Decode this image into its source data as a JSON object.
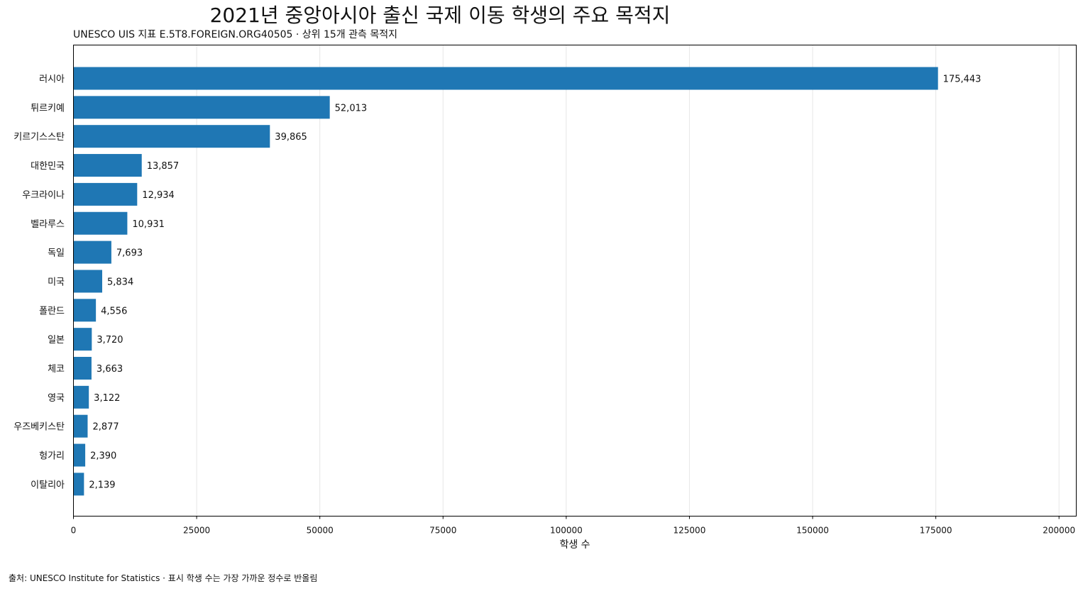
{
  "chart_data": {
    "type": "bar",
    "orientation": "horizontal",
    "title": "2021년 중앙아시아 출신 국제 이동 학생의 주요 목적지",
    "subtitle": "UNESCO UIS 지표 E.5T8.FOREIGN.ORG40505 · 상위 15개 관측 목적지",
    "xlabel": "학생 수",
    "ylabel": "",
    "xlim": [
      0,
      203500
    ],
    "xticks": [
      0,
      25000,
      50000,
      75000,
      100000,
      125000,
      150000,
      175000,
      200000
    ],
    "categories": [
      "러시아",
      "튀르키예",
      "키르기스스탄",
      "대한민국",
      "우크라이나",
      "벨라루스",
      "독일",
      "미국",
      "폴란드",
      "일본",
      "체코",
      "영국",
      "우즈베키스탄",
      "헝가리",
      "이탈리아"
    ],
    "values": [
      175443,
      52013,
      39865,
      13857,
      12934,
      10931,
      7693,
      5834,
      4556,
      3720,
      3663,
      3122,
      2877,
      2390,
      2139
    ],
    "value_labels": [
      "175,443",
      "52,013",
      "39,865",
      "13,857",
      "12,934",
      "10,931",
      "7,693",
      "5,834",
      "4,556",
      "3,720",
      "3,663",
      "3,122",
      "2,877",
      "2,390",
      "2,139"
    ],
    "bar_color": "#1f77b4",
    "grid": "vertical",
    "legend": "none"
  },
  "source_note": "출처: UNESCO Institute for Statistics · 표시 학생 수는 가장 가까운 정수로 반올림"
}
